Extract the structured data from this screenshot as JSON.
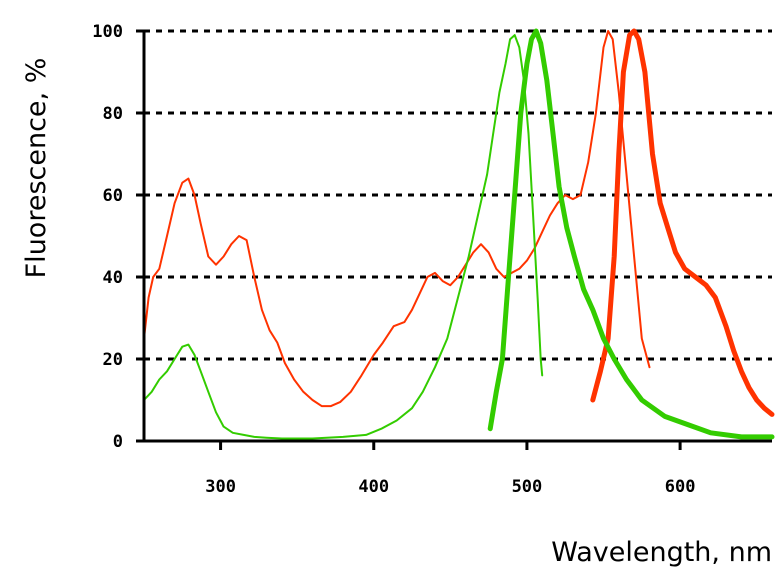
{
  "chart_data": {
    "type": "line",
    "title": "",
    "xlabel": "Wavelength, nm",
    "ylabel": "Fluorescence, %",
    "xlim": [
      250,
      660
    ],
    "ylim": [
      0,
      100
    ],
    "x_ticks": [
      300,
      400,
      500,
      600
    ],
    "y_ticks": [
      0,
      20,
      40,
      60,
      80,
      100
    ],
    "grid": "horizontal-dashed",
    "colors": {
      "red": "#ff3300",
      "green": "#33cc00"
    },
    "series": [
      {
        "color": "#ff3300",
        "width": "thin",
        "points": [
          [
            250,
            25
          ],
          [
            253,
            35
          ],
          [
            256,
            40
          ],
          [
            260,
            42
          ],
          [
            265,
            50
          ],
          [
            270,
            58
          ],
          [
            275,
            63
          ],
          [
            279,
            64
          ],
          [
            283,
            60
          ],
          [
            287,
            53
          ],
          [
            292,
            45
          ],
          [
            297,
            43
          ],
          [
            302,
            45
          ],
          [
            307,
            48
          ],
          [
            312,
            50
          ],
          [
            317,
            49
          ],
          [
            322,
            40
          ],
          [
            327,
            32
          ],
          [
            332,
            27
          ],
          [
            337,
            24
          ],
          [
            342,
            19
          ],
          [
            348,
            15
          ],
          [
            354,
            12
          ],
          [
            360,
            10
          ],
          [
            366,
            8.5
          ],
          [
            372,
            8.5
          ],
          [
            378,
            9.5
          ],
          [
            385,
            12
          ],
          [
            392,
            16
          ],
          [
            400,
            21
          ],
          [
            406,
            24
          ],
          [
            413,
            28
          ],
          [
            420,
            29
          ],
          [
            425,
            32
          ],
          [
            430,
            36
          ],
          [
            435,
            40
          ],
          [
            440,
            41
          ],
          [
            445,
            39
          ],
          [
            450,
            38
          ],
          [
            455,
            40
          ],
          [
            460,
            43
          ],
          [
            465,
            46
          ],
          [
            470,
            48
          ],
          [
            475,
            46
          ],
          [
            480,
            42
          ],
          [
            485,
            40
          ],
          [
            490,
            41
          ],
          [
            495,
            42
          ],
          [
            500,
            44
          ],
          [
            505,
            47
          ],
          [
            510,
            51
          ],
          [
            515,
            55
          ],
          [
            520,
            58
          ],
          [
            525,
            60
          ],
          [
            530,
            59
          ],
          [
            535,
            60
          ],
          [
            540,
            68
          ],
          [
            545,
            80
          ],
          [
            550,
            96
          ],
          [
            553,
            100
          ],
          [
            556,
            98
          ],
          [
            560,
            85
          ],
          [
            565,
            65
          ],
          [
            570,
            45
          ],
          [
            575,
            25
          ],
          [
            580,
            18
          ]
        ]
      },
      {
        "color": "#ff3300",
        "width": "thick",
        "points": [
          [
            543,
            10
          ],
          [
            548,
            17
          ],
          [
            553,
            25
          ],
          [
            557,
            45
          ],
          [
            560,
            70
          ],
          [
            563,
            90
          ],
          [
            567,
            99
          ],
          [
            570,
            100
          ],
          [
            573,
            98
          ],
          [
            577,
            90
          ],
          [
            582,
            70
          ],
          [
            587,
            58
          ],
          [
            592,
            52
          ],
          [
            597,
            46
          ],
          [
            603,
            42
          ],
          [
            610,
            40
          ],
          [
            617,
            38
          ],
          [
            623,
            35
          ],
          [
            630,
            28
          ],
          [
            635,
            22
          ],
          [
            640,
            17
          ],
          [
            645,
            13
          ],
          [
            650,
            10
          ],
          [
            655,
            8
          ],
          [
            660,
            6.5
          ]
        ]
      },
      {
        "color": "#33cc00",
        "width": "thin",
        "points": [
          [
            250,
            10
          ],
          [
            255,
            12
          ],
          [
            260,
            15
          ],
          [
            265,
            17
          ],
          [
            270,
            20
          ],
          [
            275,
            23
          ],
          [
            279,
            23.5
          ],
          [
            283,
            21
          ],
          [
            287,
            17
          ],
          [
            292,
            12
          ],
          [
            297,
            7
          ],
          [
            302,
            3.5
          ],
          [
            308,
            2
          ],
          [
            315,
            1.5
          ],
          [
            322,
            1
          ],
          [
            330,
            0.8
          ],
          [
            340,
            0.6
          ],
          [
            360,
            0.6
          ],
          [
            380,
            1
          ],
          [
            395,
            1.5
          ],
          [
            405,
            3
          ],
          [
            415,
            5
          ],
          [
            425,
            8
          ],
          [
            432,
            12
          ],
          [
            440,
            18
          ],
          [
            448,
            25
          ],
          [
            455,
            35
          ],
          [
            462,
            45
          ],
          [
            468,
            55
          ],
          [
            474,
            65
          ],
          [
            478,
            75
          ],
          [
            482,
            85
          ],
          [
            486,
            92
          ],
          [
            489,
            98
          ],
          [
            492,
            99
          ],
          [
            495,
            96
          ],
          [
            498,
            88
          ],
          [
            501,
            75
          ],
          [
            504,
            55
          ],
          [
            507,
            35
          ],
          [
            509,
            20
          ],
          [
            510,
            16
          ]
        ]
      },
      {
        "color": "#33cc00",
        "width": "thick",
        "points": [
          [
            476,
            3
          ],
          [
            480,
            12
          ],
          [
            484,
            20
          ],
          [
            488,
            40
          ],
          [
            492,
            60
          ],
          [
            496,
            80
          ],
          [
            500,
            92
          ],
          [
            503,
            98
          ],
          [
            506,
            100
          ],
          [
            509,
            97
          ],
          [
            513,
            88
          ],
          [
            517,
            75
          ],
          [
            521,
            62
          ],
          [
            526,
            52
          ],
          [
            531,
            45
          ],
          [
            537,
            37
          ],
          [
            543,
            32
          ],
          [
            550,
            25
          ],
          [
            557,
            20
          ],
          [
            565,
            15
          ],
          [
            575,
            10
          ],
          [
            590,
            6
          ],
          [
            605,
            4
          ],
          [
            620,
            2
          ],
          [
            640,
            1
          ],
          [
            660,
            1
          ]
        ]
      }
    ]
  }
}
